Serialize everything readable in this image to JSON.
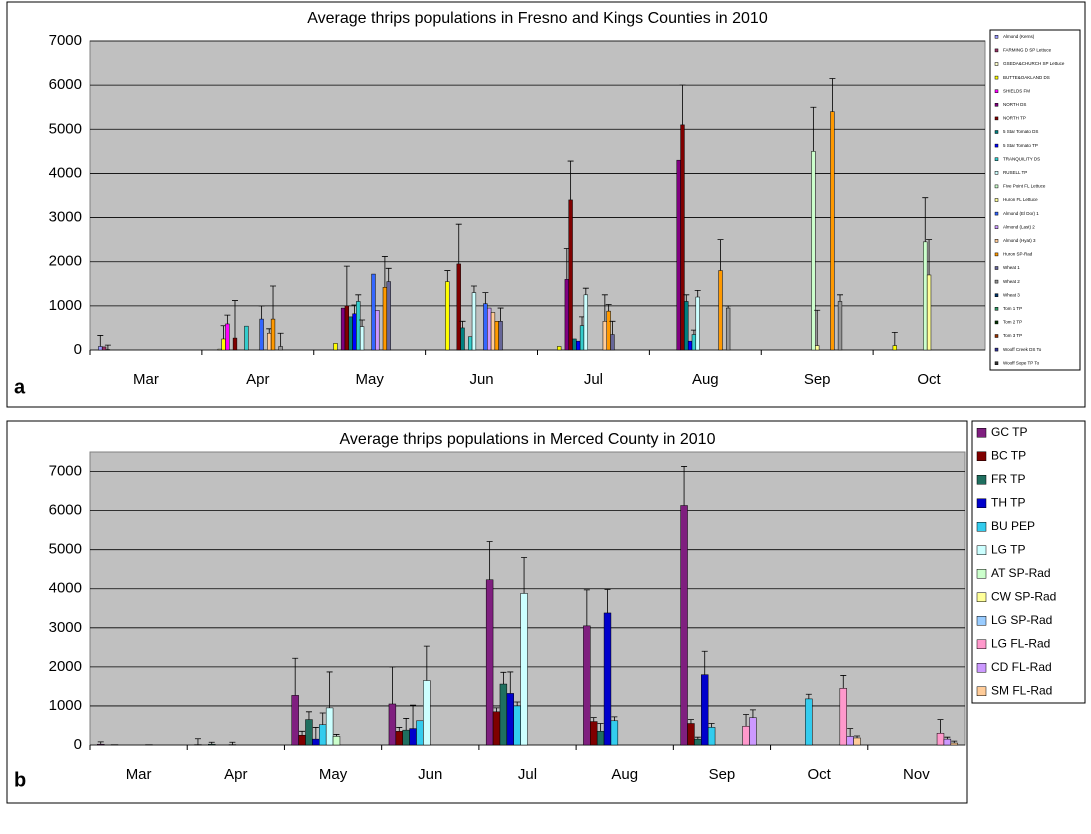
{
  "chart_data": [
    {
      "type": "bar",
      "title": "Average thrips populations in Fresno and Kings Counties in 2010",
      "label": "a",
      "categories": [
        "Mar",
        "Apr",
        "May",
        "Jun",
        "Jul",
        "Aug",
        "Sep",
        "Oct"
      ],
      "ylim": [
        0,
        7000
      ],
      "yticks": [
        0,
        1000,
        2000,
        3000,
        4000,
        5000,
        6000,
        7000
      ],
      "grid": true,
      "legend": "right",
      "series": [
        {
          "name": "Almond (Kerns)",
          "color": "#9999ff",
          "values": [
            80,
            null,
            null,
            null,
            null,
            null,
            null,
            null
          ],
          "errors": [
            250,
            null,
            null,
            null,
            null,
            null,
            null,
            null
          ]
        },
        {
          "name": "FARMING D SP Lettuce",
          "color": "#993366",
          "values": [
            70,
            null,
            null,
            null,
            null,
            null,
            null,
            null
          ],
          "errors": [
            null,
            null,
            null,
            null,
            null,
            null,
            null,
            null
          ]
        },
        {
          "name": "GSEDA&CHURCH SP Lettuce",
          "color": "#ffffcc",
          "values": [
            10,
            20,
            null,
            null,
            null,
            null,
            null,
            null
          ],
          "errors": [
            100,
            null,
            null,
            null,
            null,
            null,
            null,
            null
          ]
        },
        {
          "name": "BUTTE&OAKLAND DS",
          "color": "#ffff00",
          "values": [
            null,
            250,
            150,
            1550,
            80,
            null,
            null,
            100
          ],
          "errors": [
            null,
            300,
            null,
            250,
            null,
            null,
            null,
            300
          ]
        },
        {
          "name": "SHIELDS FM",
          "color": "#ff00ff",
          "values": [
            null,
            590,
            null,
            null,
            null,
            null,
            null,
            null
          ],
          "errors": [
            null,
            200,
            null,
            null,
            null,
            null,
            null,
            null
          ]
        },
        {
          "name": "NORTH DS",
          "color": "#800080",
          "values": [
            null,
            null,
            950,
            null,
            1600,
            4300,
            null,
            null
          ],
          "errors": [
            null,
            null,
            null,
            null,
            700,
            null,
            null,
            null
          ]
        },
        {
          "name": "NORTH TP",
          "color": "#800000",
          "values": [
            null,
            270,
            1000,
            1950,
            3400,
            5100,
            null,
            null
          ],
          "errors": [
            null,
            850,
            900,
            900,
            880,
            900,
            null,
            null
          ]
        },
        {
          "name": "5 Star Tomato DS",
          "color": "#008080",
          "values": [
            null,
            null,
            750,
            500,
            250,
            1100,
            null,
            null
          ],
          "errors": [
            null,
            null,
            null,
            150,
            null,
            150,
            null,
            null
          ]
        },
        {
          "name": "5 Star Tomato TP",
          "color": "#0000ff",
          "values": [
            null,
            null,
            820,
            null,
            200,
            200,
            null,
            null
          ],
          "errors": [
            null,
            null,
            200,
            null,
            null,
            null,
            null,
            null
          ]
        },
        {
          "name": "TRANQUILITY DS",
          "color": "#33cccc",
          "values": [
            null,
            540,
            1100,
            300,
            550,
            350,
            null,
            null
          ],
          "errors": [
            null,
            null,
            150,
            null,
            200,
            100,
            null,
            null
          ]
        },
        {
          "name": "RUSELL TP",
          "color": "#ccffff",
          "values": [
            null,
            null,
            530,
            1300,
            1250,
            1200,
            null,
            null
          ],
          "errors": [
            null,
            null,
            150,
            150,
            150,
            150,
            null,
            null
          ]
        },
        {
          "name": "Five Point FL Lettuce",
          "color": "#ccffcc",
          "values": [
            null,
            null,
            null,
            null,
            null,
            null,
            4500,
            2450
          ],
          "errors": [
            null,
            null,
            null,
            null,
            null,
            null,
            1000,
            1000
          ]
        },
        {
          "name": "Huron FL Lettuce",
          "color": "#ffff99",
          "values": [
            null,
            null,
            null,
            null,
            null,
            null,
            100,
            1700
          ],
          "errors": [
            null,
            null,
            null,
            null,
            null,
            null,
            800,
            800
          ]
        },
        {
          "name": "Almond (El Dor) 1",
          "color": "#3366ff",
          "values": [
            null,
            700,
            1720,
            1050,
            null,
            null,
            null,
            null
          ],
          "errors": [
            null,
            300,
            null,
            250,
            null,
            null,
            null,
            null
          ]
        },
        {
          "name": "Almond (Last) 2",
          "color": "#cc99ff",
          "values": [
            null,
            null,
            900,
            950,
            null,
            null,
            null,
            null
          ],
          "errors": [
            null,
            null,
            null,
            null,
            null,
            null,
            null,
            null
          ]
        },
        {
          "name": "Almond (Hyat) 3",
          "color": "#ffcc99",
          "values": [
            null,
            380,
            null,
            850,
            650,
            null,
            null,
            null
          ],
          "errors": [
            null,
            100,
            null,
            null,
            600,
            null,
            null,
            null
          ]
        },
        {
          "name": "Huron SP-Rad",
          "color": "#ff9900",
          "values": [
            null,
            700,
            1420,
            650,
            880,
            1800,
            5400,
            null
          ],
          "errors": [
            null,
            750,
            700,
            null,
            150,
            700,
            750,
            null
          ]
        },
        {
          "name": "Wheat 1",
          "color": "#666699",
          "values": [
            null,
            null,
            1550,
            650,
            350,
            null,
            null,
            null
          ],
          "errors": [
            null,
            null,
            300,
            300,
            300,
            null,
            null,
            null
          ]
        },
        {
          "name": "Wheat 2",
          "color": "#969696",
          "values": [
            null,
            80,
            null,
            null,
            null,
            950,
            1100,
            null
          ],
          "errors": [
            null,
            300,
            null,
            null,
            null,
            50,
            150,
            null
          ]
        },
        {
          "name": "Wheat 3",
          "color": "#003366",
          "values": [
            null,
            null,
            null,
            null,
            null,
            null,
            null,
            null
          ]
        },
        {
          "name": "Tom 1 TP",
          "color": "#339966",
          "values": [
            null,
            null,
            null,
            null,
            null,
            null,
            null,
            null
          ]
        },
        {
          "name": "Tom 2 TP",
          "color": "#003300",
          "values": [
            null,
            null,
            null,
            null,
            null,
            null,
            null,
            null
          ]
        },
        {
          "name": "Tom 3 TP",
          "color": "#993300",
          "values": [
            null,
            null,
            null,
            null,
            null,
            null,
            null,
            null
          ]
        },
        {
          "name": "Wooff Creek DS To",
          "color": "#333399",
          "values": [
            null,
            null,
            null,
            null,
            null,
            null,
            null,
            null
          ]
        },
        {
          "name": "Wooff Sope TP To",
          "color": "#333333",
          "values": [
            null,
            null,
            null,
            null,
            null,
            null,
            null,
            null
          ]
        }
      ]
    },
    {
      "type": "bar",
      "title": "Average thrips populations in Merced County in 2010",
      "label": "b",
      "categories": [
        "Mar",
        "Apr",
        "May",
        "Jun",
        "Jul",
        "Aug",
        "Sep",
        "Oct",
        "Nov"
      ],
      "ylim": [
        0,
        7500
      ],
      "yticks": [
        0,
        1000,
        2000,
        3000,
        4000,
        5000,
        6000,
        7000
      ],
      "grid": true,
      "legend": "right",
      "series": [
        {
          "name": "GC TP",
          "color": "#7f1f7f",
          "values": [
            20,
            10,
            1270,
            1050,
            4230,
            3050,
            6130,
            null,
            null
          ],
          "errors": [
            60,
            150,
            950,
            950,
            980,
            920,
            1000,
            null,
            null
          ]
        },
        {
          "name": "BC TP",
          "color": "#7f0000",
          "values": [
            null,
            null,
            250,
            350,
            850,
            600,
            550,
            null,
            null
          ],
          "errors": [
            null,
            null,
            100,
            100,
            100,
            100,
            100,
            null,
            null
          ]
        },
        {
          "name": "FR TP",
          "color": "#1f6f5f",
          "values": [
            10,
            20,
            650,
            380,
            1560,
            350,
            150,
            null,
            null
          ],
          "errors": [
            null,
            50,
            200,
            300,
            300,
            200,
            50,
            null,
            null
          ]
        },
        {
          "name": "TH TP",
          "color": "#0000cc",
          "values": [
            null,
            null,
            150,
            420,
            1320,
            3380,
            1800,
            null,
            null
          ],
          "errors": [
            null,
            null,
            300,
            600,
            550,
            600,
            600,
            null,
            null
          ]
        },
        {
          "name": "BU PEP",
          "color": "#33ccee",
          "values": [
            null,
            null,
            520,
            620,
            1000,
            620,
            450,
            1180,
            null
          ],
          "errors": [
            null,
            null,
            300,
            null,
            100,
            100,
            100,
            120,
            null
          ]
        },
        {
          "name": "LG TP",
          "color": "#ccffff",
          "values": [
            null,
            10,
            950,
            1650,
            3880,
            null,
            null,
            null,
            null
          ],
          "errors": [
            null,
            60,
            920,
            880,
            920,
            null,
            null,
            null,
            null
          ]
        },
        {
          "name": "AT SP-Rad",
          "color": "#ccffcc",
          "values": [
            null,
            null,
            220,
            null,
            null,
            null,
            null,
            null,
            null
          ],
          "errors": [
            null,
            null,
            50,
            null,
            null,
            null,
            null,
            null,
            null
          ]
        },
        {
          "name": "CW SP-Rad",
          "color": "#ffff99",
          "values": [
            10,
            null,
            null,
            null,
            null,
            null,
            null,
            null,
            null
          ],
          "errors": [
            null,
            null,
            null,
            null,
            null,
            null,
            null,
            null,
            null
          ]
        },
        {
          "name": "LG SP-Rad",
          "color": "#99ccff",
          "values": [
            null,
            null,
            null,
            null,
            null,
            null,
            null,
            null,
            null
          ]
        },
        {
          "name": "LG FL-Rad",
          "color": "#ff99cc",
          "values": [
            null,
            null,
            null,
            null,
            null,
            null,
            480,
            1450,
            300
          ],
          "errors": [
            null,
            null,
            null,
            null,
            null,
            null,
            300,
            330,
            350
          ]
        },
        {
          "name": "CD FL-Rad",
          "color": "#cc99ff",
          "values": [
            null,
            null,
            null,
            null,
            null,
            null,
            700,
            220,
            150
          ],
          "errors": [
            null,
            null,
            null,
            null,
            null,
            null,
            200,
            200,
            50
          ]
        },
        {
          "name": "SM FL-Rad",
          "color": "#ffcc99",
          "values": [
            null,
            null,
            null,
            null,
            null,
            null,
            null,
            180,
            50
          ],
          "errors": [
            null,
            null,
            null,
            null,
            null,
            null,
            null,
            50,
            50
          ]
        }
      ]
    }
  ]
}
